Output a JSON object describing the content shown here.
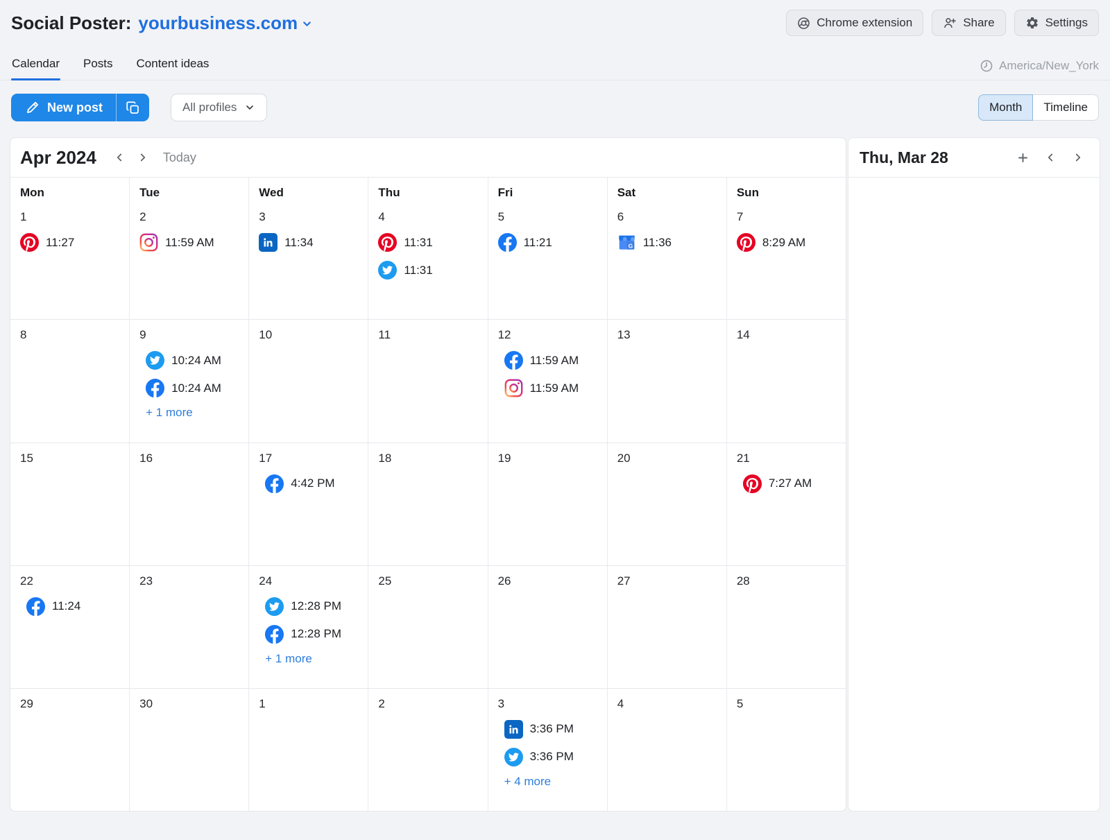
{
  "header": {
    "title": "Social Poster:",
    "domain": "yourbusiness.com",
    "buttons": [
      {
        "label": "Chrome extension",
        "icon": "chrome-icon"
      },
      {
        "label": "Share",
        "icon": "person-add-icon"
      },
      {
        "label": "Settings",
        "icon": "gear-icon"
      }
    ]
  },
  "tabs": {
    "items": [
      {
        "label": "Calendar",
        "active": true
      },
      {
        "label": "Posts",
        "active": false
      },
      {
        "label": "Content ideas",
        "active": false
      }
    ],
    "timezone": "America/New_York"
  },
  "toolbar": {
    "new_post": "New post",
    "profiles": "All profiles",
    "view_toggle": [
      "Month",
      "Timeline"
    ],
    "active_view": "Month"
  },
  "calendar": {
    "month_label": "Apr 2024",
    "today_label": "Today",
    "weekdays": [
      "Mon",
      "Tue",
      "Wed",
      "Thu",
      "Fri",
      "Sat",
      "Sun"
    ],
    "weeks": [
      [
        {
          "date": "1",
          "events": [
            {
              "network": "pinterest",
              "time": "11:27"
            }
          ]
        },
        {
          "date": "2",
          "events": [
            {
              "network": "instagram",
              "time": "11:59 AM"
            }
          ]
        },
        {
          "date": "3",
          "events": [
            {
              "network": "linkedin",
              "time": "11:34"
            }
          ]
        },
        {
          "date": "4",
          "events": [
            {
              "network": "pinterest",
              "time": "11:31"
            },
            {
              "network": "twitter",
              "time": "11:31"
            }
          ]
        },
        {
          "date": "5",
          "events": [
            {
              "network": "facebook",
              "time": "11:21"
            }
          ]
        },
        {
          "date": "6",
          "events": [
            {
              "network": "google-business",
              "time": "11:36"
            }
          ]
        },
        {
          "date": "7",
          "events": [
            {
              "network": "pinterest",
              "time": "8:29 AM"
            }
          ]
        }
      ],
      [
        {
          "date": "8",
          "events": []
        },
        {
          "date": "9",
          "events": [
            {
              "network": "twitter",
              "time": "10:24 AM"
            },
            {
              "network": "facebook",
              "time": "10:24 AM"
            }
          ],
          "more": "+ 1 more"
        },
        {
          "date": "10",
          "events": []
        },
        {
          "date": "11",
          "events": []
        },
        {
          "date": "12",
          "events": [
            {
              "network": "facebook",
              "time": "11:59 AM"
            },
            {
              "network": "instagram",
              "time": "11:59 AM"
            }
          ]
        },
        {
          "date": "13",
          "events": []
        },
        {
          "date": "14",
          "events": []
        }
      ],
      [
        {
          "date": "15",
          "events": []
        },
        {
          "date": "16",
          "events": []
        },
        {
          "date": "17",
          "events": [
            {
              "network": "facebook",
              "time": "4:42 PM"
            }
          ]
        },
        {
          "date": "18",
          "events": []
        },
        {
          "date": "19",
          "events": []
        },
        {
          "date": "20",
          "events": []
        },
        {
          "date": "21",
          "events": [
            {
              "network": "pinterest",
              "time": "7:27 AM"
            }
          ]
        }
      ],
      [
        {
          "date": "22",
          "events": [
            {
              "network": "facebook",
              "time": "11:24"
            }
          ]
        },
        {
          "date": "23",
          "events": []
        },
        {
          "date": "24",
          "events": [
            {
              "network": "twitter",
              "time": "12:28 PM"
            },
            {
              "network": "facebook",
              "time": "12:28 PM"
            }
          ],
          "more": "+ 1 more"
        },
        {
          "date": "25",
          "events": []
        },
        {
          "date": "26",
          "events": []
        },
        {
          "date": "27",
          "events": []
        },
        {
          "date": "28",
          "events": []
        }
      ],
      [
        {
          "date": "29",
          "events": []
        },
        {
          "date": "30",
          "events": []
        },
        {
          "date": "1",
          "events": []
        },
        {
          "date": "2",
          "events": []
        },
        {
          "date": "3",
          "events": [
            {
              "network": "linkedin",
              "time": "3:36 PM"
            },
            {
              "network": "twitter",
              "time": "3:36 PM"
            }
          ],
          "more": "+ 4 more"
        },
        {
          "date": "4",
          "events": []
        },
        {
          "date": "5",
          "events": []
        }
      ]
    ]
  },
  "day_panel": {
    "title": "Thu, Mar 28"
  },
  "colors": {
    "accent_blue": "#1e87e8",
    "link_blue": "#1f6fde",
    "more_link_blue": "#2d7ddb",
    "facebook": "#1877F2",
    "twitter": "#1D9BF0",
    "linkedin": "#0A66C2",
    "pinterest": "#E60023",
    "google_business": "#1A73E8"
  }
}
